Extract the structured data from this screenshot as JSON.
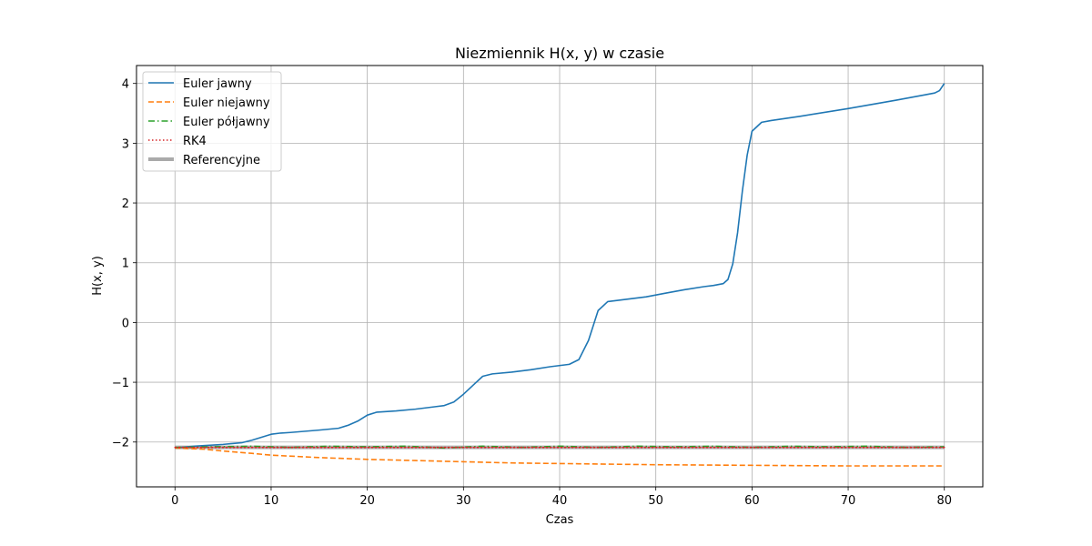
{
  "chart_data": {
    "type": "line",
    "title": "Niezmiennik H(x, y) w czasie",
    "xlabel": "Czas",
    "ylabel": "H(x, y)",
    "xlim": [
      -4,
      84
    ],
    "ylim": [
      -2.75,
      4.3
    ],
    "xticks": [
      0,
      10,
      20,
      30,
      40,
      50,
      60,
      70,
      80
    ],
    "yticks": [
      -2,
      -1,
      0,
      1,
      2,
      3,
      4
    ],
    "xtick_labels": [
      "0",
      "10",
      "20",
      "30",
      "40",
      "50",
      "60",
      "70",
      "80"
    ],
    "ytick_labels": [
      "−2",
      "−1",
      "0",
      "1",
      "2",
      "3",
      "4"
    ],
    "grid": true,
    "legend_position": "upper-left",
    "series": [
      {
        "name": "Euler jawny",
        "color": "#1f77b4",
        "style": "solid",
        "x": [
          0,
          2,
          5,
          7,
          8,
          9,
          10,
          11,
          12,
          15,
          17,
          18,
          19,
          20,
          21,
          23,
          25,
          27,
          28,
          29,
          30,
          31,
          32,
          33,
          35,
          37,
          39,
          41,
          42,
          43,
          44,
          45,
          47,
          49,
          51,
          53,
          55,
          56,
          57,
          57.5,
          58,
          58.5,
          59,
          59.5,
          60,
          61,
          62,
          65,
          70,
          75,
          78,
          79,
          79.5,
          80
        ],
        "y": [
          -2.1,
          -2.07,
          -2.04,
          -2.01,
          -1.97,
          -1.92,
          -1.87,
          -1.85,
          -1.84,
          -1.8,
          -1.77,
          -1.72,
          -1.65,
          -1.55,
          -1.5,
          -1.48,
          -1.45,
          -1.41,
          -1.39,
          -1.33,
          -1.2,
          -1.05,
          -0.9,
          -0.86,
          -0.83,
          -0.79,
          -0.74,
          -0.7,
          -0.62,
          -0.3,
          0.2,
          0.35,
          0.39,
          0.43,
          0.49,
          0.55,
          0.6,
          0.62,
          0.65,
          0.72,
          0.98,
          1.5,
          2.2,
          2.8,
          3.2,
          3.35,
          3.38,
          3.45,
          3.58,
          3.72,
          3.81,
          3.84,
          3.88,
          4.0
        ]
      },
      {
        "name": "Euler niejawny",
        "color": "#ff7f0e",
        "style": "dashed",
        "x": [
          0,
          3,
          5,
          8,
          10,
          15,
          20,
          25,
          30,
          35,
          40,
          50,
          60,
          70,
          80
        ],
        "y": [
          -2.1,
          -2.12,
          -2.15,
          -2.19,
          -2.22,
          -2.26,
          -2.29,
          -2.31,
          -2.33,
          -2.35,
          -2.36,
          -2.38,
          -2.39,
          -2.4,
          -2.4
        ]
      },
      {
        "name": "Euler półjawny",
        "color": "#2ca02c",
        "style": "dashdot",
        "x": [
          0,
          4,
          8,
          12,
          16,
          20,
          24,
          28,
          32,
          36,
          40,
          44,
          48,
          52,
          56,
          60,
          64,
          68,
          72,
          76,
          80
        ],
        "y": [
          -2.09,
          -2.08,
          -2.07,
          -2.09,
          -2.07,
          -2.08,
          -2.07,
          -2.1,
          -2.07,
          -2.09,
          -2.07,
          -2.09,
          -2.07,
          -2.08,
          -2.07,
          -2.09,
          -2.07,
          -2.08,
          -2.07,
          -2.09,
          -2.08
        ]
      },
      {
        "name": "RK4",
        "color": "#d62728",
        "style": "dotted",
        "x": [
          0,
          10,
          20,
          30,
          40,
          50,
          60,
          70,
          80
        ],
        "y": [
          -2.09,
          -2.09,
          -2.09,
          -2.09,
          -2.09,
          -2.09,
          -2.09,
          -2.09,
          -2.09
        ]
      },
      {
        "name": "Referencyjne",
        "color": "#aaaaaa",
        "style": "thick-solid",
        "x": [
          0,
          80
        ],
        "y": [
          -2.09,
          -2.09
        ]
      }
    ]
  }
}
